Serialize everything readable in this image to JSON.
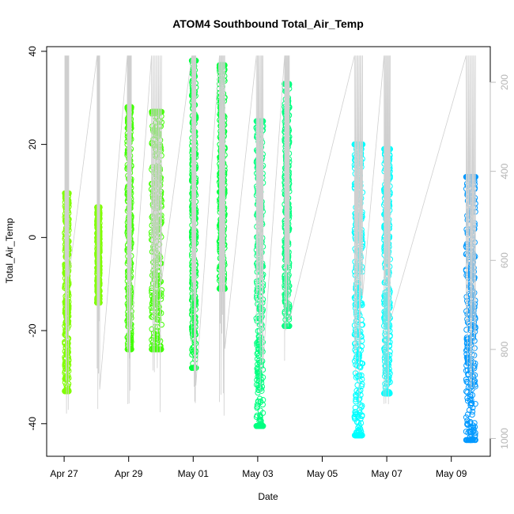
{
  "chart_data": {
    "type": "scatter",
    "title": "ATOM4 Southbound Total_Air_Temp",
    "xlabel": "Date",
    "ylabel": "Total_Air_Temp",
    "x_ticks": [
      "Apr 27",
      "Apr 29",
      "May 01",
      "May 03",
      "May 05",
      "May 07",
      "May 09"
    ],
    "x_tick_dates": [
      "2023-04-27",
      "2023-04-29",
      "2023-05-01",
      "2023-05-03",
      "2023-05-05",
      "2023-05-07",
      "2023-05-09"
    ],
    "xlim": [
      "2023-04-26T11:00",
      "2023-05-10T05:00"
    ],
    "ylim": [
      -47,
      41
    ],
    "y_ticks": [
      -40,
      -20,
      0,
      20,
      40
    ],
    "y2_ticks": [
      200,
      400,
      600,
      800,
      1000
    ],
    "y2lim": [
      1040,
      120
    ],
    "y2_color": "#bebebe",
    "grid": false,
    "series": [
      {
        "color": "#80ff00",
        "flights": [
          {
            "start": "2023-04-27T00:30",
            "end": "2023-04-27T03:30",
            "min": -33,
            "max": 9.5
          },
          {
            "start": "2023-04-28T00:30",
            "end": "2023-04-28T02:30",
            "min": -14,
            "max": 6.5
          }
        ]
      },
      {
        "color": "#40ff00",
        "flights": [
          {
            "start": "2023-04-28T23:00",
            "end": "2023-04-29T02:00",
            "min": -24,
            "max": 28
          },
          {
            "start": "2023-04-29T17:00",
            "end": "2023-04-30T00:30",
            "min": -24,
            "max": 27
          }
        ]
      },
      {
        "color": "#00ff40",
        "flights": [
          {
            "start": "2023-04-30T23:00",
            "end": "2023-05-01T02:00",
            "min": -28,
            "max": 38
          },
          {
            "start": "2023-05-01T19:30",
            "end": "2023-05-01T23:30",
            "min": -11,
            "max": 37
          }
        ]
      },
      {
        "color": "#00ff80",
        "flights": [
          {
            "start": "2023-05-02T23:00",
            "end": "2023-05-03T04:00",
            "min": -40.5,
            "max": 25
          },
          {
            "start": "2023-05-03T20:00",
            "end": "2023-05-03T23:30",
            "min": -19,
            "max": 33
          }
        ]
      },
      {
        "color": "#00ffff",
        "flights": [
          {
            "start": "2023-05-06T00:00",
            "end": "2023-05-06T06:00",
            "min": -42.5,
            "max": 20
          },
          {
            "start": "2023-05-06T22:00",
            "end": "2023-05-07T02:30",
            "min": -33.5,
            "max": 19
          }
        ]
      },
      {
        "color": "#0099ff",
        "flights": [
          {
            "start": "2023-05-09T11:00",
            "end": "2023-05-09T18:00",
            "min": -43.5,
            "max": 13
          }
        ]
      }
    ],
    "pressure_line_color": "#cfcfcf"
  }
}
